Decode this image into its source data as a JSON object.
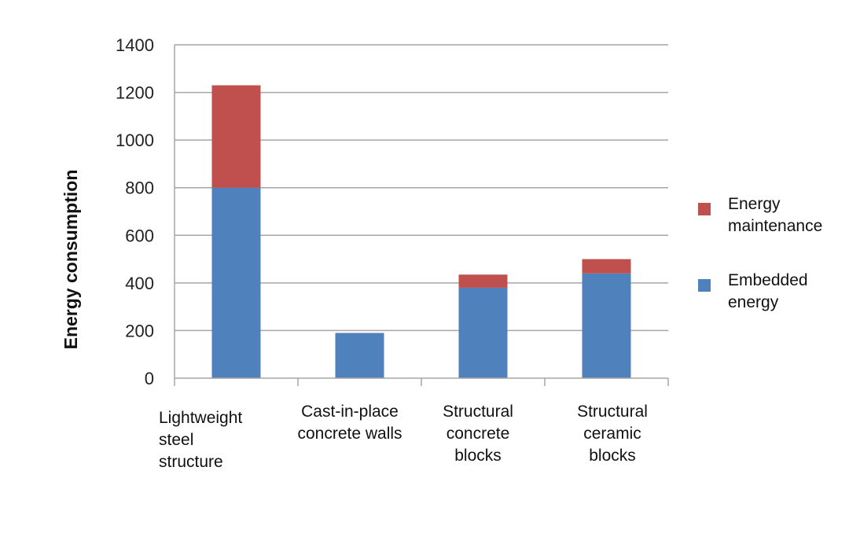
{
  "chart_data": {
    "type": "bar",
    "stacked": true,
    "ylabel": "Energy consumption",
    "xlabel": "",
    "ylim": [
      0,
      1400
    ],
    "yticks": [
      "0",
      "200",
      "400",
      "600",
      "800",
      "1000",
      "1200",
      "1400"
    ],
    "grid": true,
    "legend_position": "right",
    "categories": [
      [
        "Lightweight",
        "steel",
        "structure"
      ],
      [
        "Cast-in-place",
        "concrete walls"
      ],
      [
        "Structural",
        "concrete",
        "blocks"
      ],
      [
        "Structural",
        "ceramic",
        "blocks"
      ]
    ],
    "series": [
      {
        "name": "Embedded energy",
        "color": "#4f81bd",
        "values": [
          800,
          190,
          380,
          440
        ]
      },
      {
        "name": "Energy maintenance",
        "color": "#c0504d",
        "values": [
          430,
          0,
          55,
          60
        ]
      }
    ],
    "legend": [
      {
        "lines": [
          "Energy",
          "maintenance"
        ],
        "color": "#c0504d"
      },
      {
        "lines": [
          "Embedded",
          "energy"
        ],
        "color": "#4f81bd"
      }
    ]
  }
}
